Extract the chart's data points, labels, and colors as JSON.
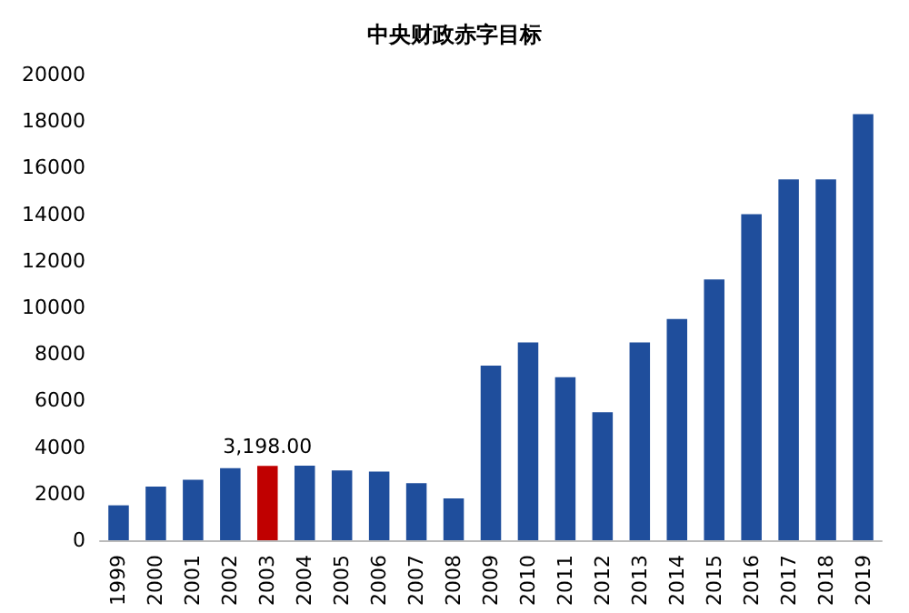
{
  "chart_data": {
    "type": "bar",
    "title": "中央财政赤字目标",
    "categories": [
      "1999",
      "2000",
      "2001",
      "2002",
      "2003",
      "2004",
      "2005",
      "2006",
      "2007",
      "2008",
      "2009",
      "2010",
      "2011",
      "2012",
      "2013",
      "2014",
      "2015",
      "2016",
      "2017",
      "2018",
      "2019"
    ],
    "values": [
      1500,
      2300,
      2600,
      3100,
      3198,
      3200,
      3000,
      2950,
      2450,
      1800,
      7500,
      8500,
      7000,
      5500,
      8500,
      9500,
      11200,
      14000,
      15500,
      15500,
      18300
    ],
    "colors": [
      "#1f4e9c",
      "#1f4e9c",
      "#1f4e9c",
      "#1f4e9c",
      "#c00000",
      "#1f4e9c",
      "#1f4e9c",
      "#1f4e9c",
      "#1f4e9c",
      "#1f4e9c",
      "#1f4e9c",
      "#1f4e9c",
      "#1f4e9c",
      "#1f4e9c",
      "#1f4e9c",
      "#1f4e9c",
      "#1f4e9c",
      "#1f4e9c",
      "#1f4e9c",
      "#1f4e9c",
      "#1f4e9c"
    ],
    "value_labels": [
      null,
      null,
      null,
      null,
      "3,198.00",
      null,
      null,
      null,
      null,
      null,
      null,
      null,
      null,
      null,
      null,
      null,
      null,
      null,
      null,
      null,
      null
    ],
    "ylim": [
      0,
      20000
    ],
    "yticks": [
      0,
      2000,
      4000,
      6000,
      8000,
      10000,
      12000,
      14000,
      16000,
      18000,
      20000
    ],
    "grid": false
  }
}
